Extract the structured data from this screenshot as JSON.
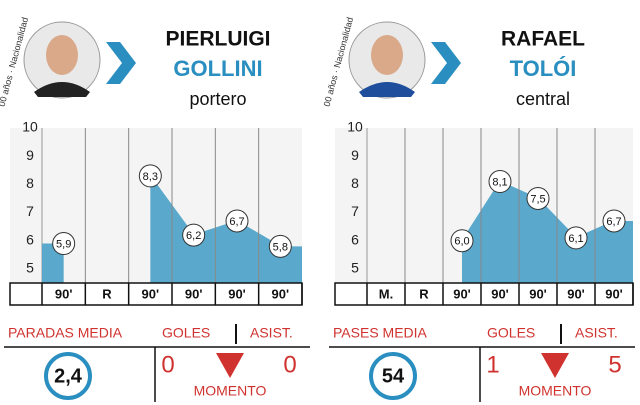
{
  "chart_data": [
    {
      "type": "area",
      "side_label": "00 años · Nacionalidad",
      "name_first": "PIERLUIGI",
      "name_last": "GOLLINI",
      "position": "portero",
      "categories": [
        "90'",
        "R",
        "90'",
        "90'",
        "90'",
        "90'"
      ],
      "values": [
        5.9,
        null,
        8.3,
        6.2,
        6.7,
        5.8
      ],
      "value_labels": [
        "5,9",
        null,
        "8,3",
        "6,2",
        "6,7",
        "5,8"
      ],
      "color": "#5aa9cc",
      "ylim": [
        4.5,
        10
      ],
      "yticks": [
        5,
        6,
        7,
        8,
        9,
        10
      ],
      "stats": {
        "main_label": "PARADAS MEDIA",
        "main_value": "2,4",
        "goals_label": "GOLES",
        "goals_value": "0",
        "assists_label": "ASIST.",
        "assists_value": "0",
        "moment_label": "MOMENTO"
      }
    },
    {
      "type": "area",
      "side_label": "00 años · Nacionalidad",
      "name_first": "RAFAEL",
      "name_last": "TOLÓI",
      "position": "central",
      "categories": [
        "M.",
        "R",
        "90'",
        "90'",
        "90'",
        "90'",
        "90'"
      ],
      "values": [
        null,
        null,
        6.0,
        8.1,
        7.5,
        6.1,
        6.7
      ],
      "value_labels": [
        null,
        null,
        "6,0",
        "8,1",
        "7,5",
        "6,1",
        "6,7"
      ],
      "color": "#5aa9cc",
      "ylim": [
        4.5,
        10
      ],
      "yticks": [
        5,
        6,
        7,
        8,
        9,
        10
      ],
      "stats": {
        "main_label": "PASES MEDIA",
        "main_value": "54",
        "goals_label": "GOLES",
        "goals_value": "1",
        "assists_label": "ASIST.",
        "assists_value": "5",
        "moment_label": "MOMENTO"
      }
    }
  ]
}
